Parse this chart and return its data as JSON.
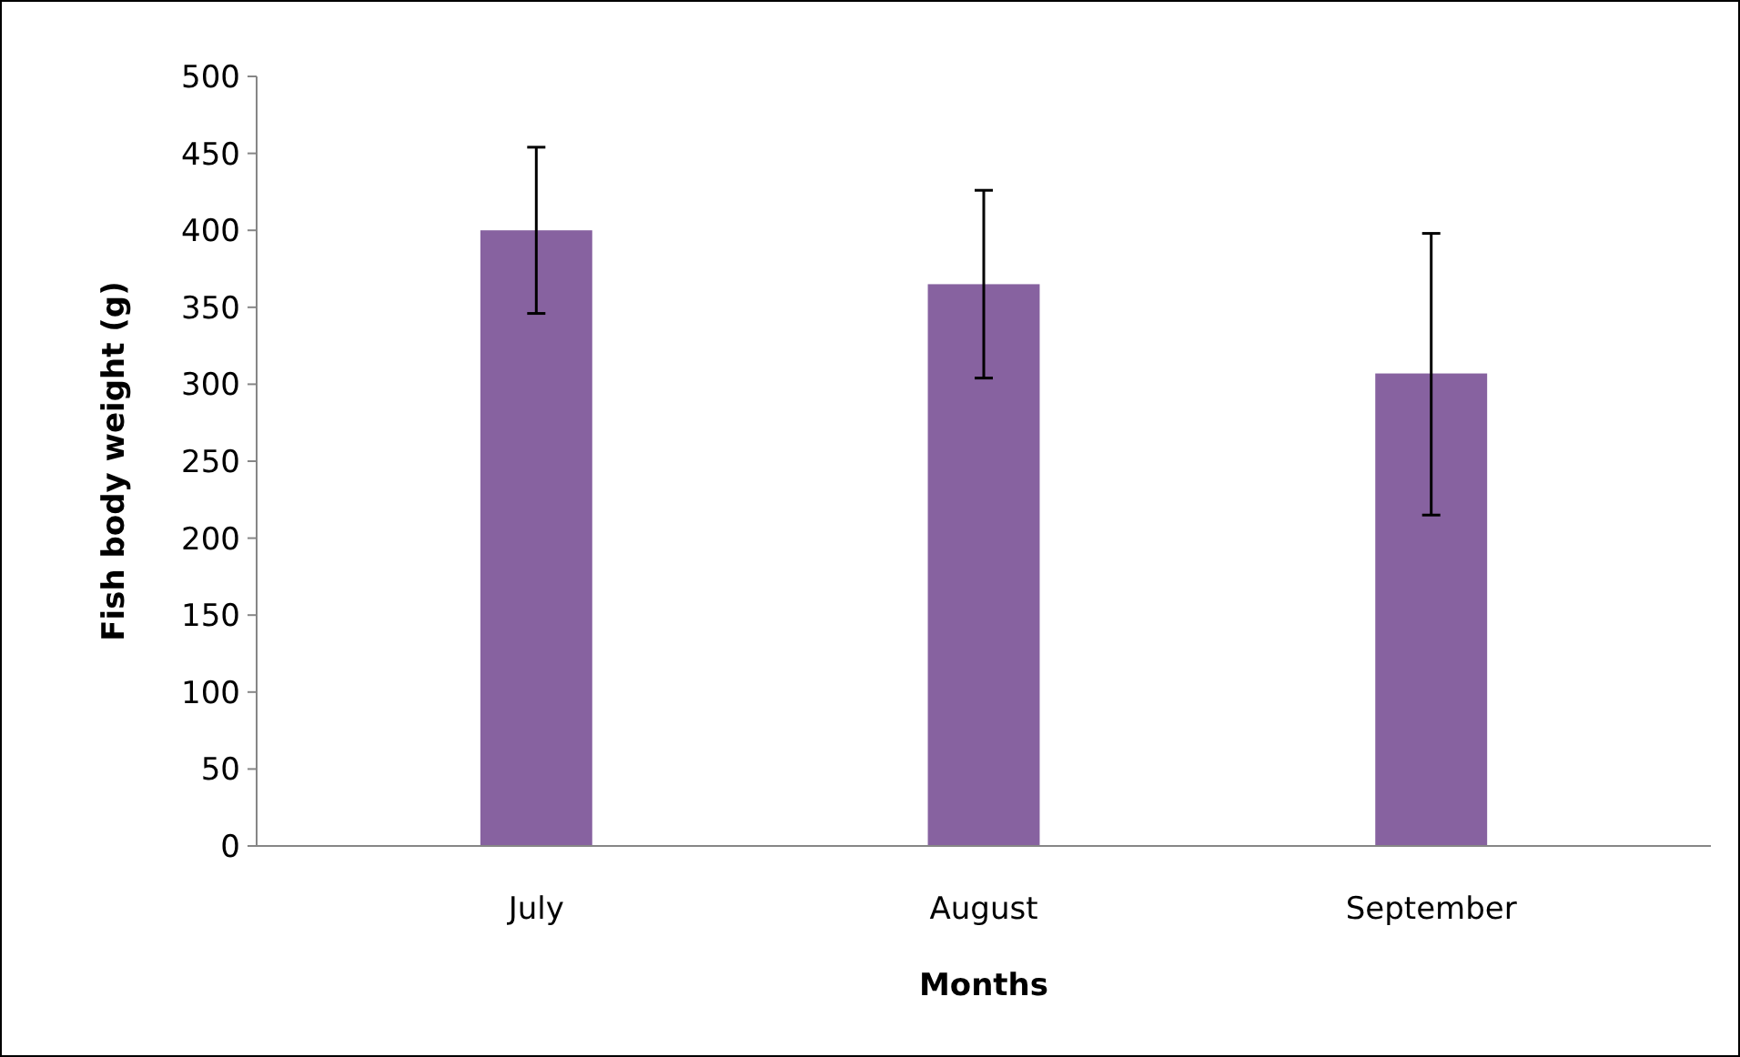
{
  "chart_data": {
    "type": "bar",
    "xlabel": "Months",
    "ylabel": "Fish body weight (g)",
    "categories": [
      "July",
      "August",
      "September"
    ],
    "values": [
      400,
      365,
      307
    ],
    "errors": [
      [
        346,
        454
      ],
      [
        304,
        426
      ],
      [
        215,
        398
      ]
    ],
    "color": "#8762a0",
    "ylim": [
      0,
      500
    ],
    "yticks": [
      0,
      50,
      100,
      150,
      200,
      250,
      300,
      350,
      400,
      450,
      500
    ],
    "grid": false
  }
}
